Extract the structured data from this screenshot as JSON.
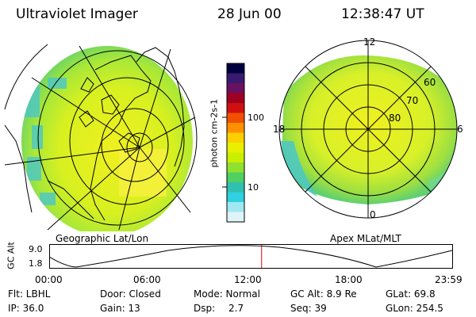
{
  "header": {
    "title": "Ultraviolet Imager",
    "date": "28 Jun 00",
    "time": "12:38:47 UT"
  },
  "left_panel": {
    "caption": "Geographic Lat/Lon"
  },
  "right_panel": {
    "caption": "Apex MLat/MLT",
    "mlt_labels": {
      "top": "12",
      "left": "18",
      "right": "6",
      "bottom": "0"
    },
    "lat_labels": [
      "60",
      "70",
      "80"
    ]
  },
  "colorbar": {
    "label": "photon cm-2s-1",
    "ticks": [
      "100",
      "10"
    ],
    "colors": [
      "#000040",
      "#3a1a70",
      "#6a1060",
      "#a00020",
      "#d01010",
      "#f05000",
      "#ff9000",
      "#ffd000",
      "#e8f000",
      "#c8f000",
      "#90e030",
      "#50d060",
      "#30c0b0",
      "#30d0e0",
      "#a0e8f0",
      "#e0f4f8"
    ]
  },
  "altitude_plot": {
    "ylabel": "GC Alt",
    "y_ticks": [
      "9.0",
      "1.8"
    ],
    "x_ticks": [
      "00:00",
      "06:00",
      "12:00",
      "18:00",
      "23:59"
    ],
    "current_time_hours": 12.65
  },
  "info": {
    "filter": "Flt: LBHL",
    "ip": "IP: 36.0",
    "door": "Door: Closed",
    "gain": "Gain: 13",
    "mode": "Mode: Normal",
    "dsp_label": "Dsp:",
    "dsp_value": "2.7",
    "gc_alt": "GC Alt: 8.9 Re",
    "seq": "Seq: 39",
    "glat": "GLat: 69.8",
    "glon": "GLon: 254.5"
  }
}
